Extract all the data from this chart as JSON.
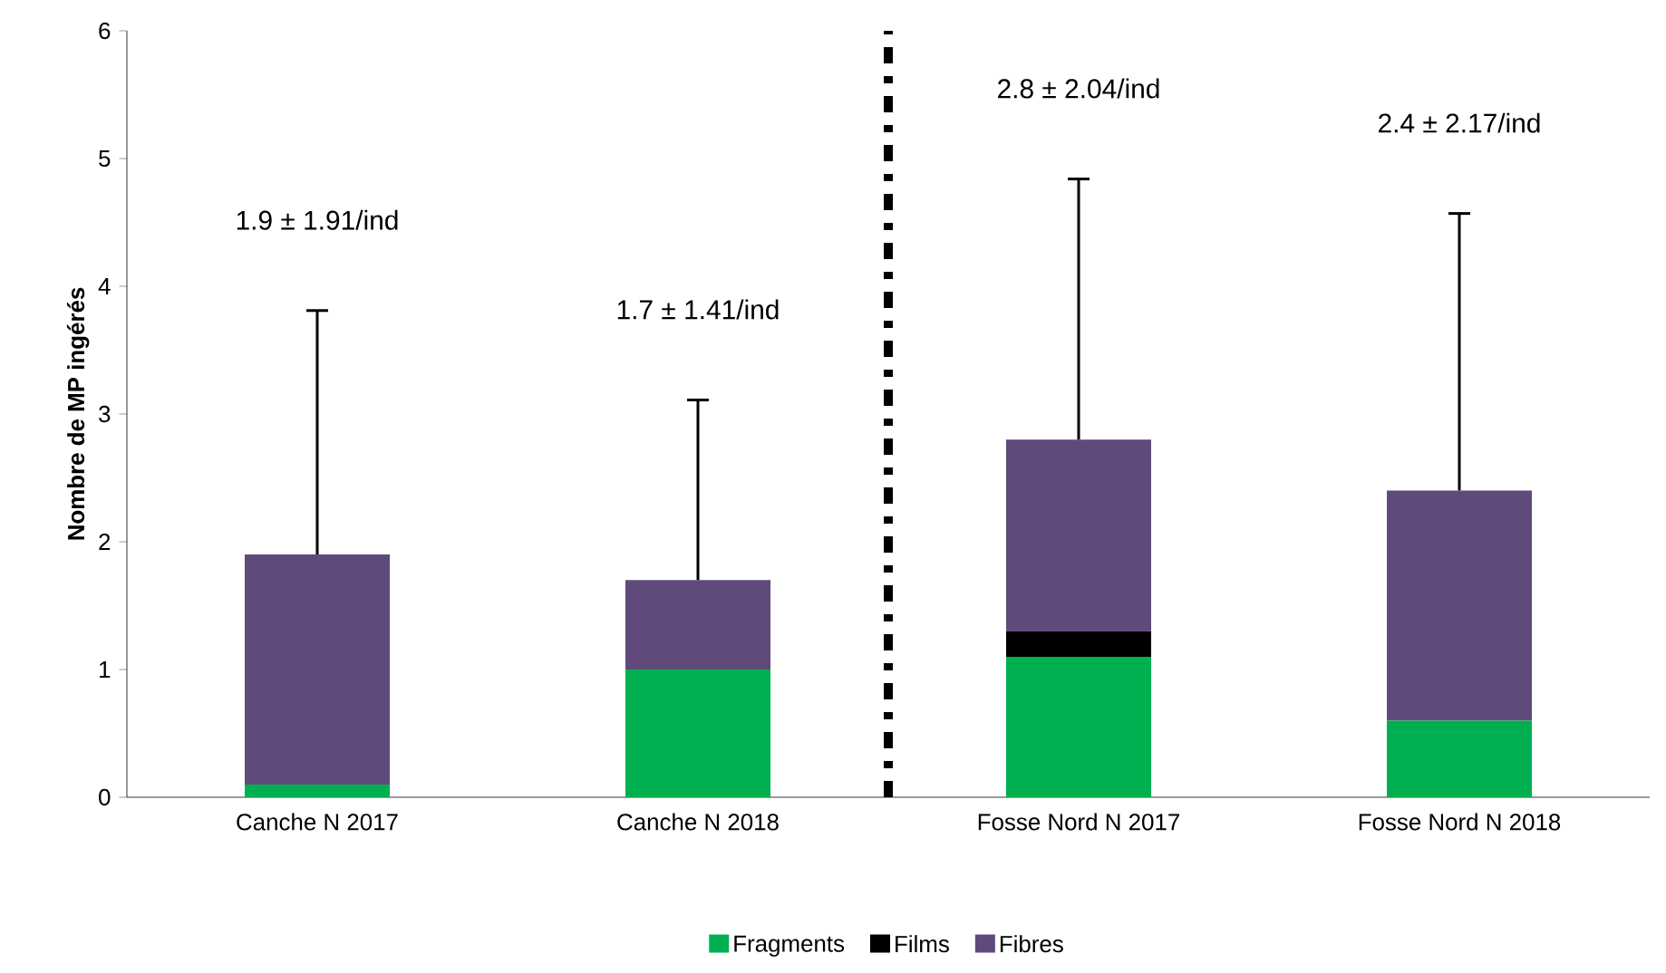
{
  "chart_data": {
    "type": "bar",
    "stacked": true,
    "ylabel": "Nombre de MP ingérés",
    "categories": [
      "Canche N 2017",
      "Canche N 2018",
      "Fosse Nord N 2017",
      "Fosse Nord N 2018"
    ],
    "series": [
      {
        "name": "Fragments",
        "color": "#00b050",
        "values": [
          0.1,
          1.0,
          1.1,
          0.6
        ]
      },
      {
        "name": "Films",
        "color": "#000000",
        "values": [
          0,
          0,
          0.2,
          0
        ]
      },
      {
        "name": "Fibres",
        "color": "#604a7b",
        "values": [
          1.8,
          0.7,
          1.5,
          1.8
        ],
        "errors": [
          [
            1.9,
            3.81
          ],
          [
            1.7,
            3.11
          ],
          [
            2.8,
            4.84
          ],
          [
            2.4,
            4.57
          ]
        ]
      }
    ],
    "ylim": [
      0,
      6
    ],
    "yticks": [
      0,
      1,
      2,
      3,
      4,
      5,
      6
    ],
    "grid": false,
    "legend": "bottom",
    "annotations": [
      "1.9 ± 1.91/ind",
      "1.7 ± 1.41/ind",
      "2.8 ± 2.04/ind",
      "2.4 ± 2.17/ind"
    ]
  }
}
